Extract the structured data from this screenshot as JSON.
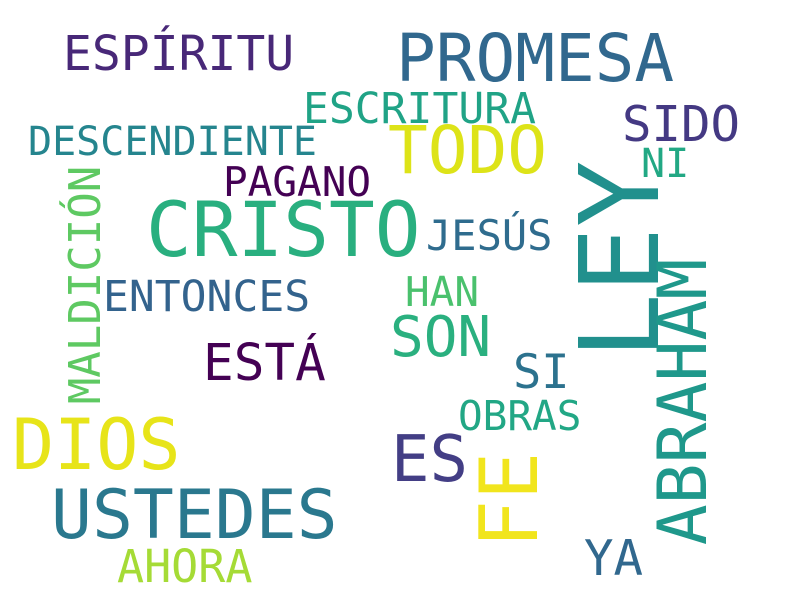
{
  "words": {
    "espiritu": {
      "text": "ESPÍRITU",
      "color": "#482878"
    },
    "promesa": {
      "text": "PROMESA",
      "color": "#31688e"
    },
    "escritura": {
      "text": "ESCRITURA",
      "color": "#20a386"
    },
    "sido": {
      "text": "SIDO",
      "color": "#443983"
    },
    "descendiente": {
      "text": "DESCENDIENTE",
      "color": "#25858e"
    },
    "todo": {
      "text": "TODO",
      "color": "#dde318"
    },
    "ni": {
      "text": "NI",
      "color": "#22a884"
    },
    "pagano": {
      "text": "PAGANO",
      "color": "#440154"
    },
    "cristo": {
      "text": "CRISTO",
      "color": "#29af7f"
    },
    "jesus": {
      "text": "JESÚS",
      "color": "#2f6c8e"
    },
    "ley": {
      "text": "LEY",
      "color": "#21908d"
    },
    "maldicion": {
      "text": "MALDICIÓN",
      "color": "#5ec962"
    },
    "entonces": {
      "text": "ENTONCES",
      "color": "#33638d"
    },
    "han": {
      "text": "HAN",
      "color": "#4ac16d"
    },
    "son": {
      "text": "SON",
      "color": "#2ab07f"
    },
    "abraham": {
      "text": "ABRAHAM",
      "color": "#1f988b"
    },
    "esta": {
      "text": "ESTÁ",
      "color": "#440154"
    },
    "si": {
      "text": "SI",
      "color": "#2c728e"
    },
    "obras": {
      "text": "OBRAS",
      "color": "#22a785"
    },
    "dios": {
      "text": "DIOS",
      "color": "#e7e419"
    },
    "es": {
      "text": "ES",
      "color": "#433e85"
    },
    "fe": {
      "text": "FE",
      "color": "#f1e51d"
    },
    "ustedes": {
      "text": "USTEDES",
      "color": "#2a788e"
    },
    "ya": {
      "text": "YA",
      "color": "#31688e"
    },
    "ahora": {
      "text": "AHORA",
      "color": "#a5db36"
    }
  }
}
